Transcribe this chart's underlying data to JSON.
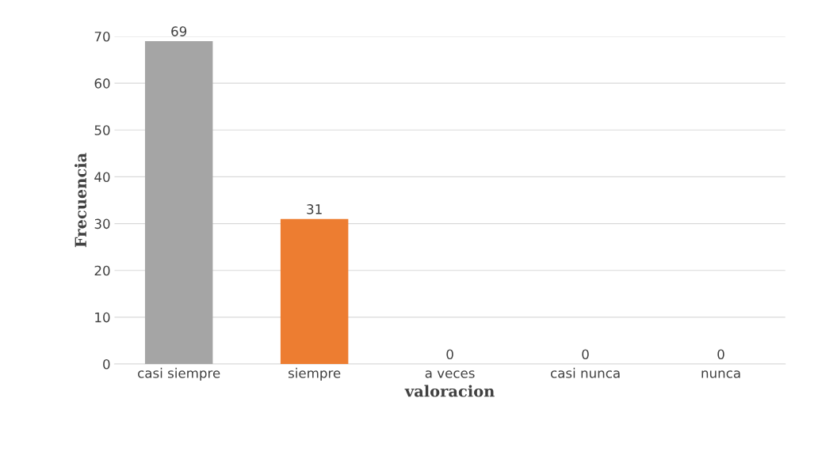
{
  "chart_data": {
    "type": "bar",
    "xlabel": "valoracion",
    "ylabel": "Frecuencia",
    "categories": [
      "casi siempre",
      "siempre",
      "a veces",
      "casi nunca",
      "nunca"
    ],
    "values": [
      69,
      31,
      0,
      0,
      0
    ],
    "colors": [
      "#a5a5a5",
      "#ed7d31",
      "#000000",
      "#548235",
      "#7f7f7f"
    ],
    "ylim": [
      0,
      70
    ],
    "yticks": [
      0,
      10,
      20,
      30,
      40,
      50,
      60,
      70
    ],
    "grid": "y",
    "data_labels": true
  }
}
